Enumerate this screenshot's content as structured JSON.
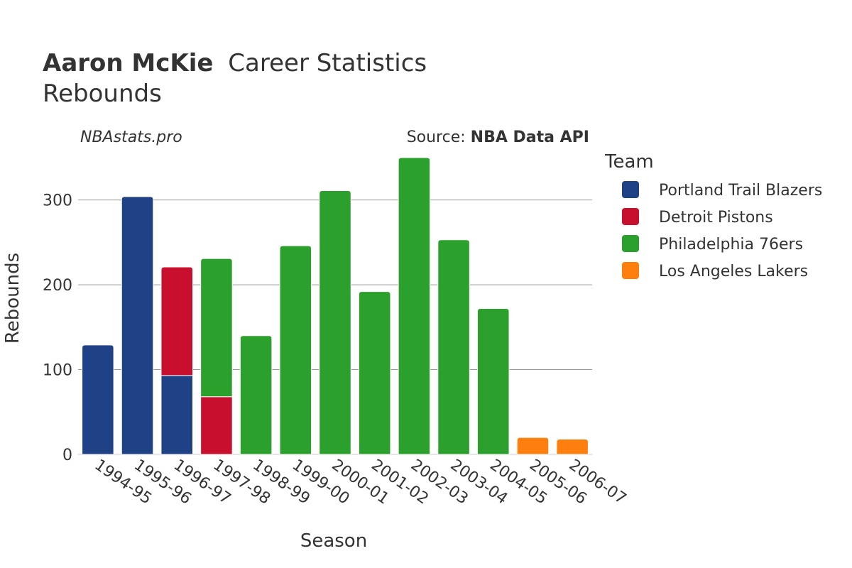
{
  "chart_data": {
    "type": "bar",
    "stacked": true,
    "title_bold": "Aaron McKie",
    "title_rest": "Career Statistics",
    "subtitle": "Rebounds",
    "watermark": "NBAstats.pro",
    "source_prefix": "Source: ",
    "source_name": "NBA Data API",
    "xlabel": "Season",
    "ylabel": "Rebounds",
    "ylim": [
      0,
      360
    ],
    "yticks": [
      0,
      100,
      200,
      300
    ],
    "grid": true,
    "legend_title": "Team",
    "legend_position": "right",
    "categories": [
      "1994-95",
      "1995-96",
      "1996-97",
      "1997-98",
      "1998-99",
      "1999-00",
      "2000-01",
      "2001-02",
      "2002-03",
      "2003-04",
      "2004-05",
      "2005-06",
      "2006-07"
    ],
    "series": [
      {
        "name": "Portland Trail Blazers",
        "color": "#1f4287",
        "values": [
          129,
          304,
          93,
          0,
          0,
          0,
          0,
          0,
          0,
          0,
          0,
          0,
          0
        ]
      },
      {
        "name": "Detroit Pistons",
        "color": "#c8102e",
        "values": [
          0,
          0,
          128,
          68,
          0,
          0,
          0,
          0,
          0,
          0,
          0,
          0,
          0
        ]
      },
      {
        "name": "Philadelphia 76ers",
        "color": "#2ca02c",
        "values": [
          0,
          0,
          0,
          163,
          140,
          246,
          311,
          192,
          350,
          253,
          172,
          0,
          0
        ]
      },
      {
        "name": "Los Angeles Lakers",
        "color": "#ff7f0e",
        "values": [
          0,
          0,
          0,
          0,
          0,
          0,
          0,
          0,
          0,
          0,
          0,
          20,
          18
        ]
      }
    ]
  }
}
